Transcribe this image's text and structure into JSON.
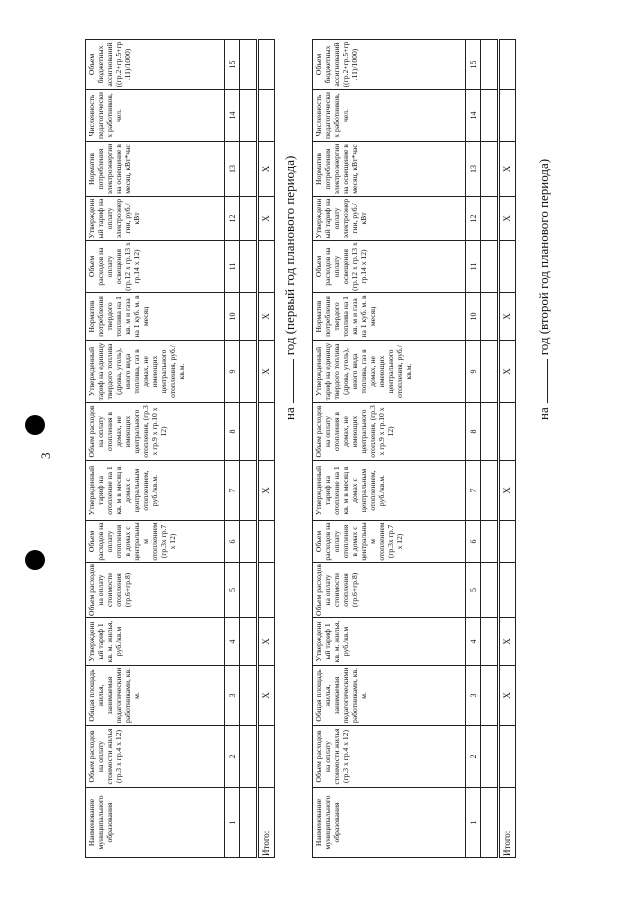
{
  "page_number": "3",
  "columns": [
    "Наименование муниципального образования",
    "Объем расходов на оплату стоимости жилья (гр.3 x гр.4 x 12)",
    "Общая площадь жилья, занимаемая педагогическими работниками, кв. м.",
    "Утвержденный тариф 1 кв. м. жилья, руб./кв.м",
    "Объем расходов на оплату стоимости отопления (гр.6+гр.8)",
    "Объем расходов на оплату отопления в домах с центральным отоплением (гр.3x гр.7 x 12)",
    "Утвержденный тариф на отопление на 1 кв. м в месяц в домах с центральным отоплением, руб./кв.м.",
    "Объем расходов на оплату отопления в домах, не имеющих центрального отопления, (гр.3 x гр.9 x гр.10 x 12)",
    "Утвержденный тариф на единицу твердого топлива (дрова, уголь), иного вида топлива, газ в домах, не имеющих центрального отопления, руб./кв.м.",
    "Норматив потребления твердого топлива на 1 кв. м и газа на 1 куб. м. в месяц",
    "Объем расходов на оплату освещения (гр.12 x гр.13 x гр.14 x 12)",
    "Утвержденный тариф на оплату электроэнергии, руб./ кВт",
    "Норматив потребления электроэнергии на освещение в месяц, кВт*час",
    "Численность педагогических работников, чел.",
    "Объем бюджетных ассигнований ((гр.2+гр.5+гр.11)/1000)"
  ],
  "column_numbers": [
    "1",
    "2",
    "3",
    "4",
    "5",
    "6",
    "7",
    "8",
    "9",
    "10",
    "11",
    "12",
    "13",
    "14",
    "15"
  ],
  "total_row": [
    "Итого:",
    "",
    "X",
    "X",
    "",
    "",
    "X",
    "",
    "X",
    "X",
    "",
    "X",
    "X",
    "",
    ""
  ],
  "tables": [
    {
      "caption_prefix": "на",
      "caption_suffix": "год (первый год планового периода)"
    },
    {
      "caption_prefix": "на",
      "caption_suffix": "год (второй год планового периода)"
    }
  ]
}
